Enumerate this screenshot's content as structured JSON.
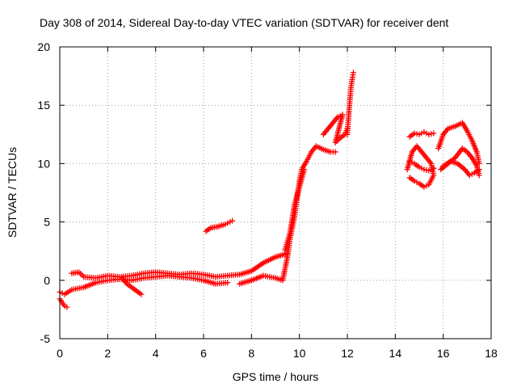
{
  "chart_data": {
    "type": "scatter",
    "title": "Day 308 of 2014, Sidereal Day-to-day VTEC variation (SDTVAR) for receiver dent",
    "xlabel": "GPS time / hours",
    "ylabel": "SDTVAR / TECUs",
    "xlim": [
      0,
      18
    ],
    "ylim": [
      -5,
      20
    ],
    "xticks": [
      "0",
      "2",
      "4",
      "6",
      "8",
      "10",
      "12",
      "14",
      "16",
      "18"
    ],
    "yticks": [
      "-5",
      "0",
      "5",
      "10",
      "15",
      "20"
    ],
    "grid": true,
    "marker": "+",
    "series_color": "#ff0000",
    "segments": [
      {
        "name": "early-low",
        "points": [
          [
            0,
            -1.0
          ],
          [
            0.2,
            -1.2
          ],
          [
            0.5,
            -0.8
          ],
          [
            1.0,
            -0.6
          ],
          [
            1.5,
            -0.2
          ],
          [
            2.0,
            0.0
          ],
          [
            2.5,
            0.1
          ],
          [
            3.0,
            0.0
          ],
          [
            3.5,
            0.2
          ],
          [
            4.0,
            0.3
          ],
          [
            4.5,
            0.4
          ],
          [
            5.0,
            0.3
          ],
          [
            5.5,
            0.2
          ],
          [
            6.0,
            0.0
          ],
          [
            6.5,
            -0.3
          ],
          [
            7.0,
            -0.2
          ]
        ]
      },
      {
        "name": "early-high",
        "points": [
          [
            0.5,
            0.6
          ],
          [
            0.8,
            0.7
          ],
          [
            1.0,
            0.3
          ],
          [
            1.5,
            0.2
          ],
          [
            2.0,
            0.4
          ],
          [
            2.5,
            0.3
          ],
          [
            3.0,
            0.4
          ],
          [
            3.5,
            0.6
          ],
          [
            4.0,
            0.7
          ],
          [
            4.5,
            0.6
          ],
          [
            5.0,
            0.5
          ],
          [
            5.5,
            0.6
          ],
          [
            6.0,
            0.5
          ],
          [
            6.5,
            0.3
          ],
          [
            7.0,
            0.4
          ],
          [
            7.5,
            0.5
          ],
          [
            8.0,
            0.8
          ],
          [
            8.5,
            1.5
          ],
          [
            9.0,
            2.0
          ],
          [
            9.5,
            2.3
          ]
        ]
      },
      {
        "name": "dip-3h",
        "points": [
          [
            2.6,
            0.2
          ],
          [
            2.8,
            -0.3
          ],
          [
            3.0,
            -0.6
          ],
          [
            3.2,
            -0.9
          ],
          [
            3.4,
            -1.2
          ]
        ]
      },
      {
        "name": "start-dip",
        "points": [
          [
            0.0,
            -1.6
          ],
          [
            0.1,
            -1.9
          ],
          [
            0.2,
            -2.2
          ],
          [
            0.3,
            -2.3
          ]
        ]
      },
      {
        "name": "bump-6h",
        "points": [
          [
            6.1,
            4.2
          ],
          [
            6.3,
            4.5
          ],
          [
            6.6,
            4.6
          ],
          [
            6.9,
            4.8
          ],
          [
            7.1,
            5.0
          ],
          [
            7.2,
            5.1
          ]
        ]
      },
      {
        "name": "rise-late",
        "points": [
          [
            7.5,
            -0.3
          ],
          [
            8.0,
            0.0
          ],
          [
            8.5,
            0.4
          ],
          [
            9.0,
            0.2
          ],
          [
            9.3,
            0.0
          ],
          [
            9.5,
            2.0
          ],
          [
            9.6,
            3.5
          ],
          [
            9.7,
            4.5
          ],
          [
            9.8,
            5.5
          ],
          [
            9.9,
            7.0
          ],
          [
            10.0,
            8.5
          ],
          [
            10.1,
            9.5
          ],
          [
            10.3,
            10.2
          ],
          [
            10.5,
            11.0
          ],
          [
            10.7,
            11.5
          ],
          [
            11.0,
            11.2
          ],
          [
            11.3,
            11.0
          ],
          [
            11.5,
            11.0
          ]
        ]
      },
      {
        "name": "rise-inner",
        "points": [
          [
            9.4,
            2.6
          ],
          [
            9.6,
            4.0
          ],
          [
            9.8,
            6.5
          ],
          [
            10.0,
            8.0
          ],
          [
            10.2,
            9.5
          ]
        ]
      },
      {
        "name": "cluster-11-12",
        "points": [
          [
            11.0,
            12.5
          ],
          [
            11.2,
            13.0
          ],
          [
            11.4,
            13.5
          ],
          [
            11.6,
            14.0
          ],
          [
            11.8,
            14.2
          ],
          [
            11.5,
            11.8
          ],
          [
            11.7,
            12.2
          ],
          [
            11.9,
            12.5
          ],
          [
            12.0,
            13.0
          ]
        ]
      },
      {
        "name": "spike-12h",
        "points": [
          [
            12.0,
            12.5
          ],
          [
            12.05,
            14.0
          ],
          [
            12.1,
            15.3
          ],
          [
            12.15,
            16.5
          ],
          [
            12.2,
            17.2
          ],
          [
            12.25,
            17.8
          ]
        ]
      },
      {
        "name": "block-15h-a",
        "points": [
          [
            14.6,
            12.3
          ],
          [
            14.8,
            12.6
          ],
          [
            15.0,
            12.5
          ],
          [
            15.2,
            12.7
          ],
          [
            15.4,
            12.5
          ],
          [
            15.6,
            12.6
          ]
        ]
      },
      {
        "name": "block-15h-b",
        "points": [
          [
            14.5,
            9.5
          ],
          [
            14.7,
            11.0
          ],
          [
            14.9,
            11.5
          ],
          [
            15.1,
            11.0
          ],
          [
            15.3,
            10.5
          ],
          [
            15.5,
            10.0
          ],
          [
            15.6,
            9.0
          ],
          [
            15.4,
            8.2
          ],
          [
            15.2,
            8.0
          ],
          [
            15.0,
            8.3
          ],
          [
            14.8,
            8.5
          ],
          [
            14.6,
            8.8
          ]
        ]
      },
      {
        "name": "block-15h-c",
        "points": [
          [
            14.6,
            10.2
          ],
          [
            14.8,
            10.0
          ],
          [
            15.0,
            9.7
          ],
          [
            15.2,
            9.5
          ],
          [
            15.4,
            9.4
          ],
          [
            15.6,
            9.6
          ]
        ]
      },
      {
        "name": "block-17h-a",
        "points": [
          [
            15.8,
            11.3
          ],
          [
            16.0,
            12.5
          ],
          [
            16.2,
            13.0
          ],
          [
            16.5,
            13.2
          ],
          [
            16.8,
            13.5
          ],
          [
            17.0,
            12.8
          ],
          [
            17.2,
            12.0
          ],
          [
            17.4,
            11.0
          ],
          [
            17.5,
            10.0
          ]
        ]
      },
      {
        "name": "block-17h-b",
        "points": [
          [
            15.9,
            9.5
          ],
          [
            16.2,
            10.0
          ],
          [
            16.5,
            10.5
          ],
          [
            16.8,
            11.3
          ],
          [
            17.0,
            11.0
          ],
          [
            17.2,
            10.5
          ],
          [
            17.4,
            9.8
          ],
          [
            17.5,
            9.0
          ]
        ]
      },
      {
        "name": "block-17h-c",
        "points": [
          [
            16.0,
            9.8
          ],
          [
            16.3,
            10.2
          ],
          [
            16.6,
            10.0
          ],
          [
            16.9,
            9.5
          ],
          [
            17.1,
            9.0
          ],
          [
            17.3,
            9.2
          ],
          [
            17.5,
            9.5
          ]
        ]
      }
    ]
  }
}
